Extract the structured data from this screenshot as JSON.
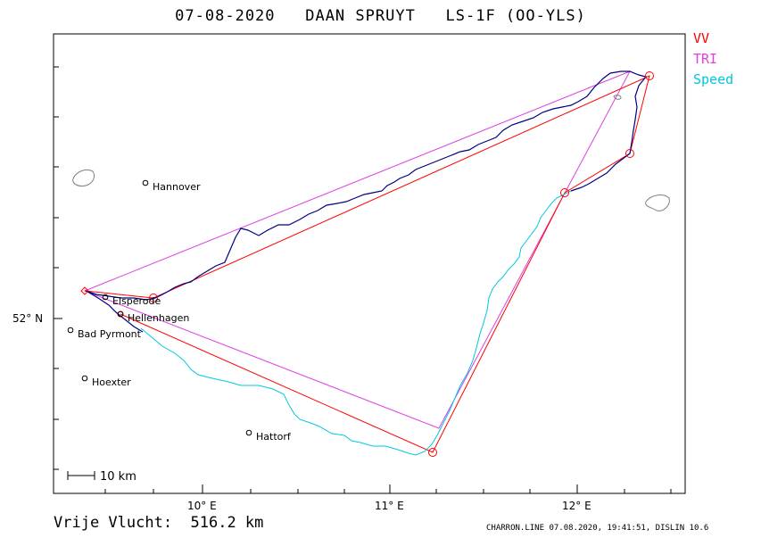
{
  "header": {
    "title": "07-08-2020   DAAN SPRUYT   LS-1F (OO-YLS)"
  },
  "legend": [
    {
      "label": "VV",
      "color": "#ff0000"
    },
    {
      "label": "TRI",
      "color": "#e040e0"
    },
    {
      "label": "Speed",
      "color": "#00c8e0"
    }
  ],
  "axes": {
    "x_ticks": [
      "10° E",
      "11° E",
      "12° E"
    ],
    "y_ticks": [
      "52° N"
    ]
  },
  "places": [
    "Hannover",
    "Elsperode",
    "Hellenhagen",
    "Bad Pyrmont",
    "Hoexter",
    "Hattorf"
  ],
  "scale_bar": {
    "label": "10 km"
  },
  "footer": {
    "distance": "Vrije Vlucht:  516.2 km",
    "credits": "CHARRON.LINE 07.08.2020, 19:41:51, DISLIN 10.6"
  },
  "colors": {
    "track": "#000080",
    "vv": "#ff0000",
    "tri": "#e040e0",
    "speed": "#00c8e0"
  }
}
